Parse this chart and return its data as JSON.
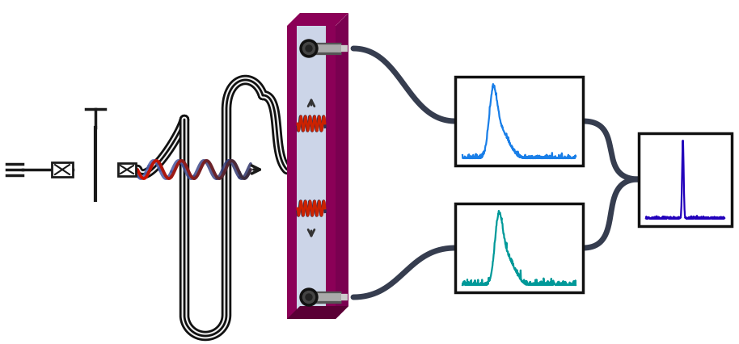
{
  "bg_color": "#ffffff",
  "qubit_color": "#1a1a1a",
  "cable_color": "#363d4f",
  "wave_red": "#cc1100",
  "wave_blue": "#334477",
  "wave_dark": "#2d3040",
  "det_front": "#ccd5e8",
  "det_body": "#8b0057",
  "det_top": "#8b0057",
  "det_right": "#7a0050",
  "det_bottom": "#5a0035",
  "plot1_color": "#1a7fe8",
  "plot2_color": "#009999",
  "plot3_color": "#2200bb",
  "box_border": "#111111",
  "inner_wave_red": "#cc2200",
  "inner_wave_dark": "#2d3050",
  "arrow_dark": "#333333",
  "therm_body": "#333333",
  "therm_tube": "#888888",
  "therm_tip": "#bbbbbb"
}
